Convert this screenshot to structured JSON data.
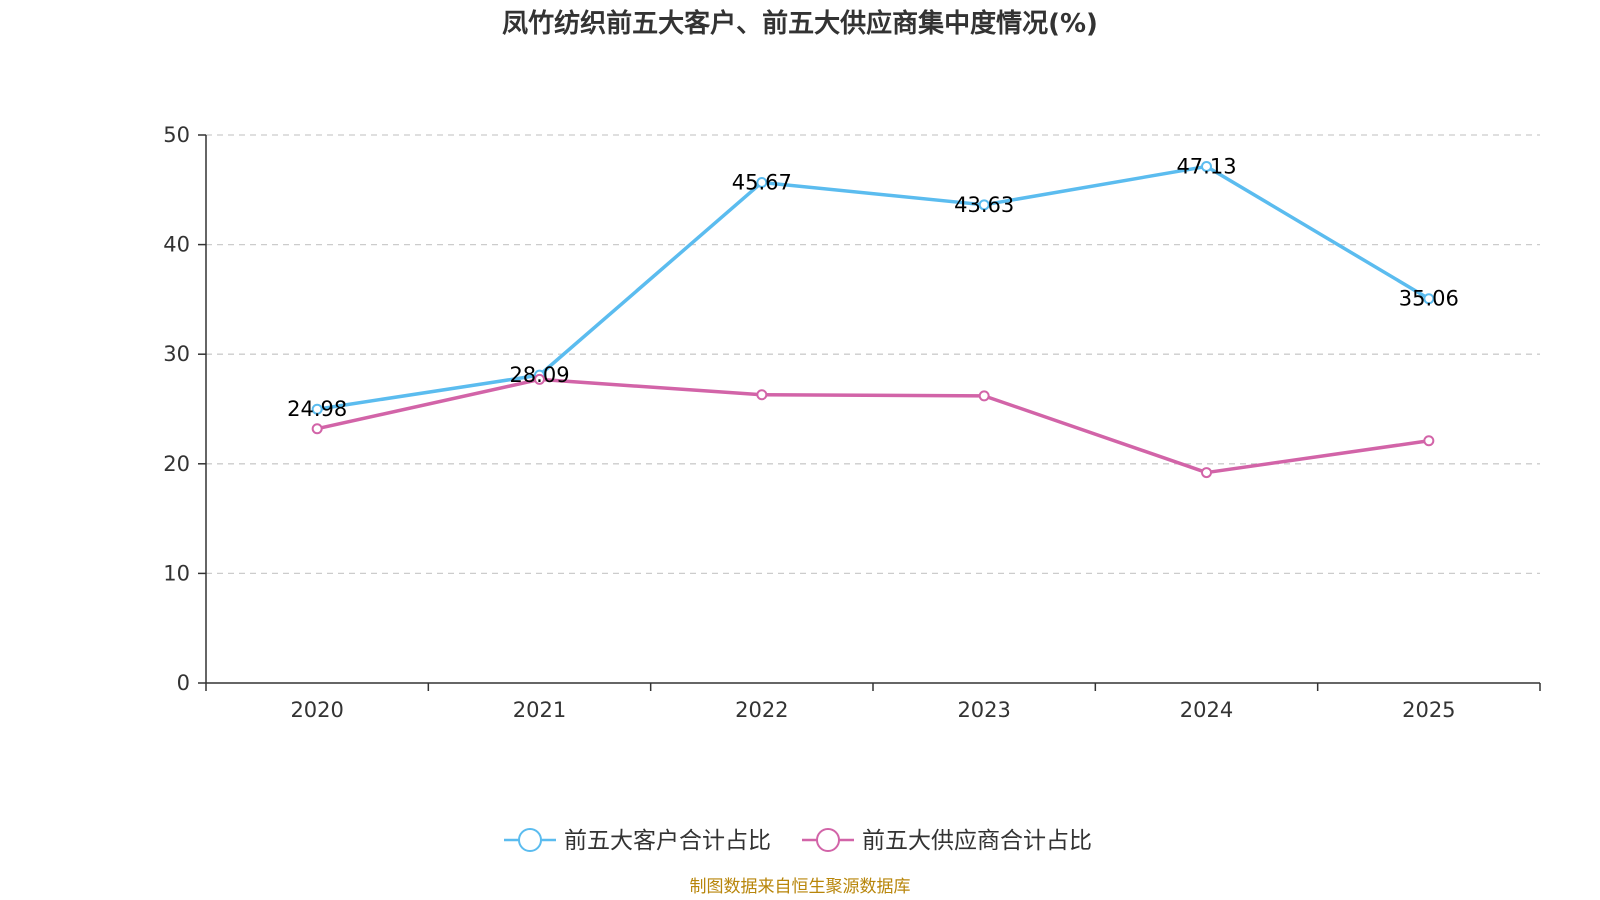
{
  "chart_data": {
    "type": "line",
    "title": "凤竹纺织前五大客户、前五大供应商集中度情况(%)",
    "categories": [
      "2020",
      "2021",
      "2022",
      "2023",
      "2024",
      "2025"
    ],
    "y_ticks": [
      "0",
      "10",
      "20",
      "30",
      "40",
      "50"
    ],
    "ylim": [
      0,
      50
    ],
    "grid": true,
    "legend_position": "bottom-center",
    "series": [
      {
        "name": "前五大客户合计占比",
        "color": "#5bbcef",
        "values": [
          24.98,
          28.09,
          45.67,
          43.63,
          47.13,
          35.06
        ],
        "labels": [
          "24.98",
          "28.09",
          "45.67",
          "43.63",
          "47.13",
          "35.06"
        ]
      },
      {
        "name": "前五大供应商合计占比",
        "color": "#d264a8",
        "values": [
          23.2,
          27.7,
          26.3,
          26.2,
          19.2,
          22.1
        ]
      }
    ],
    "source": "制图数据来自恒生聚源数据库"
  }
}
